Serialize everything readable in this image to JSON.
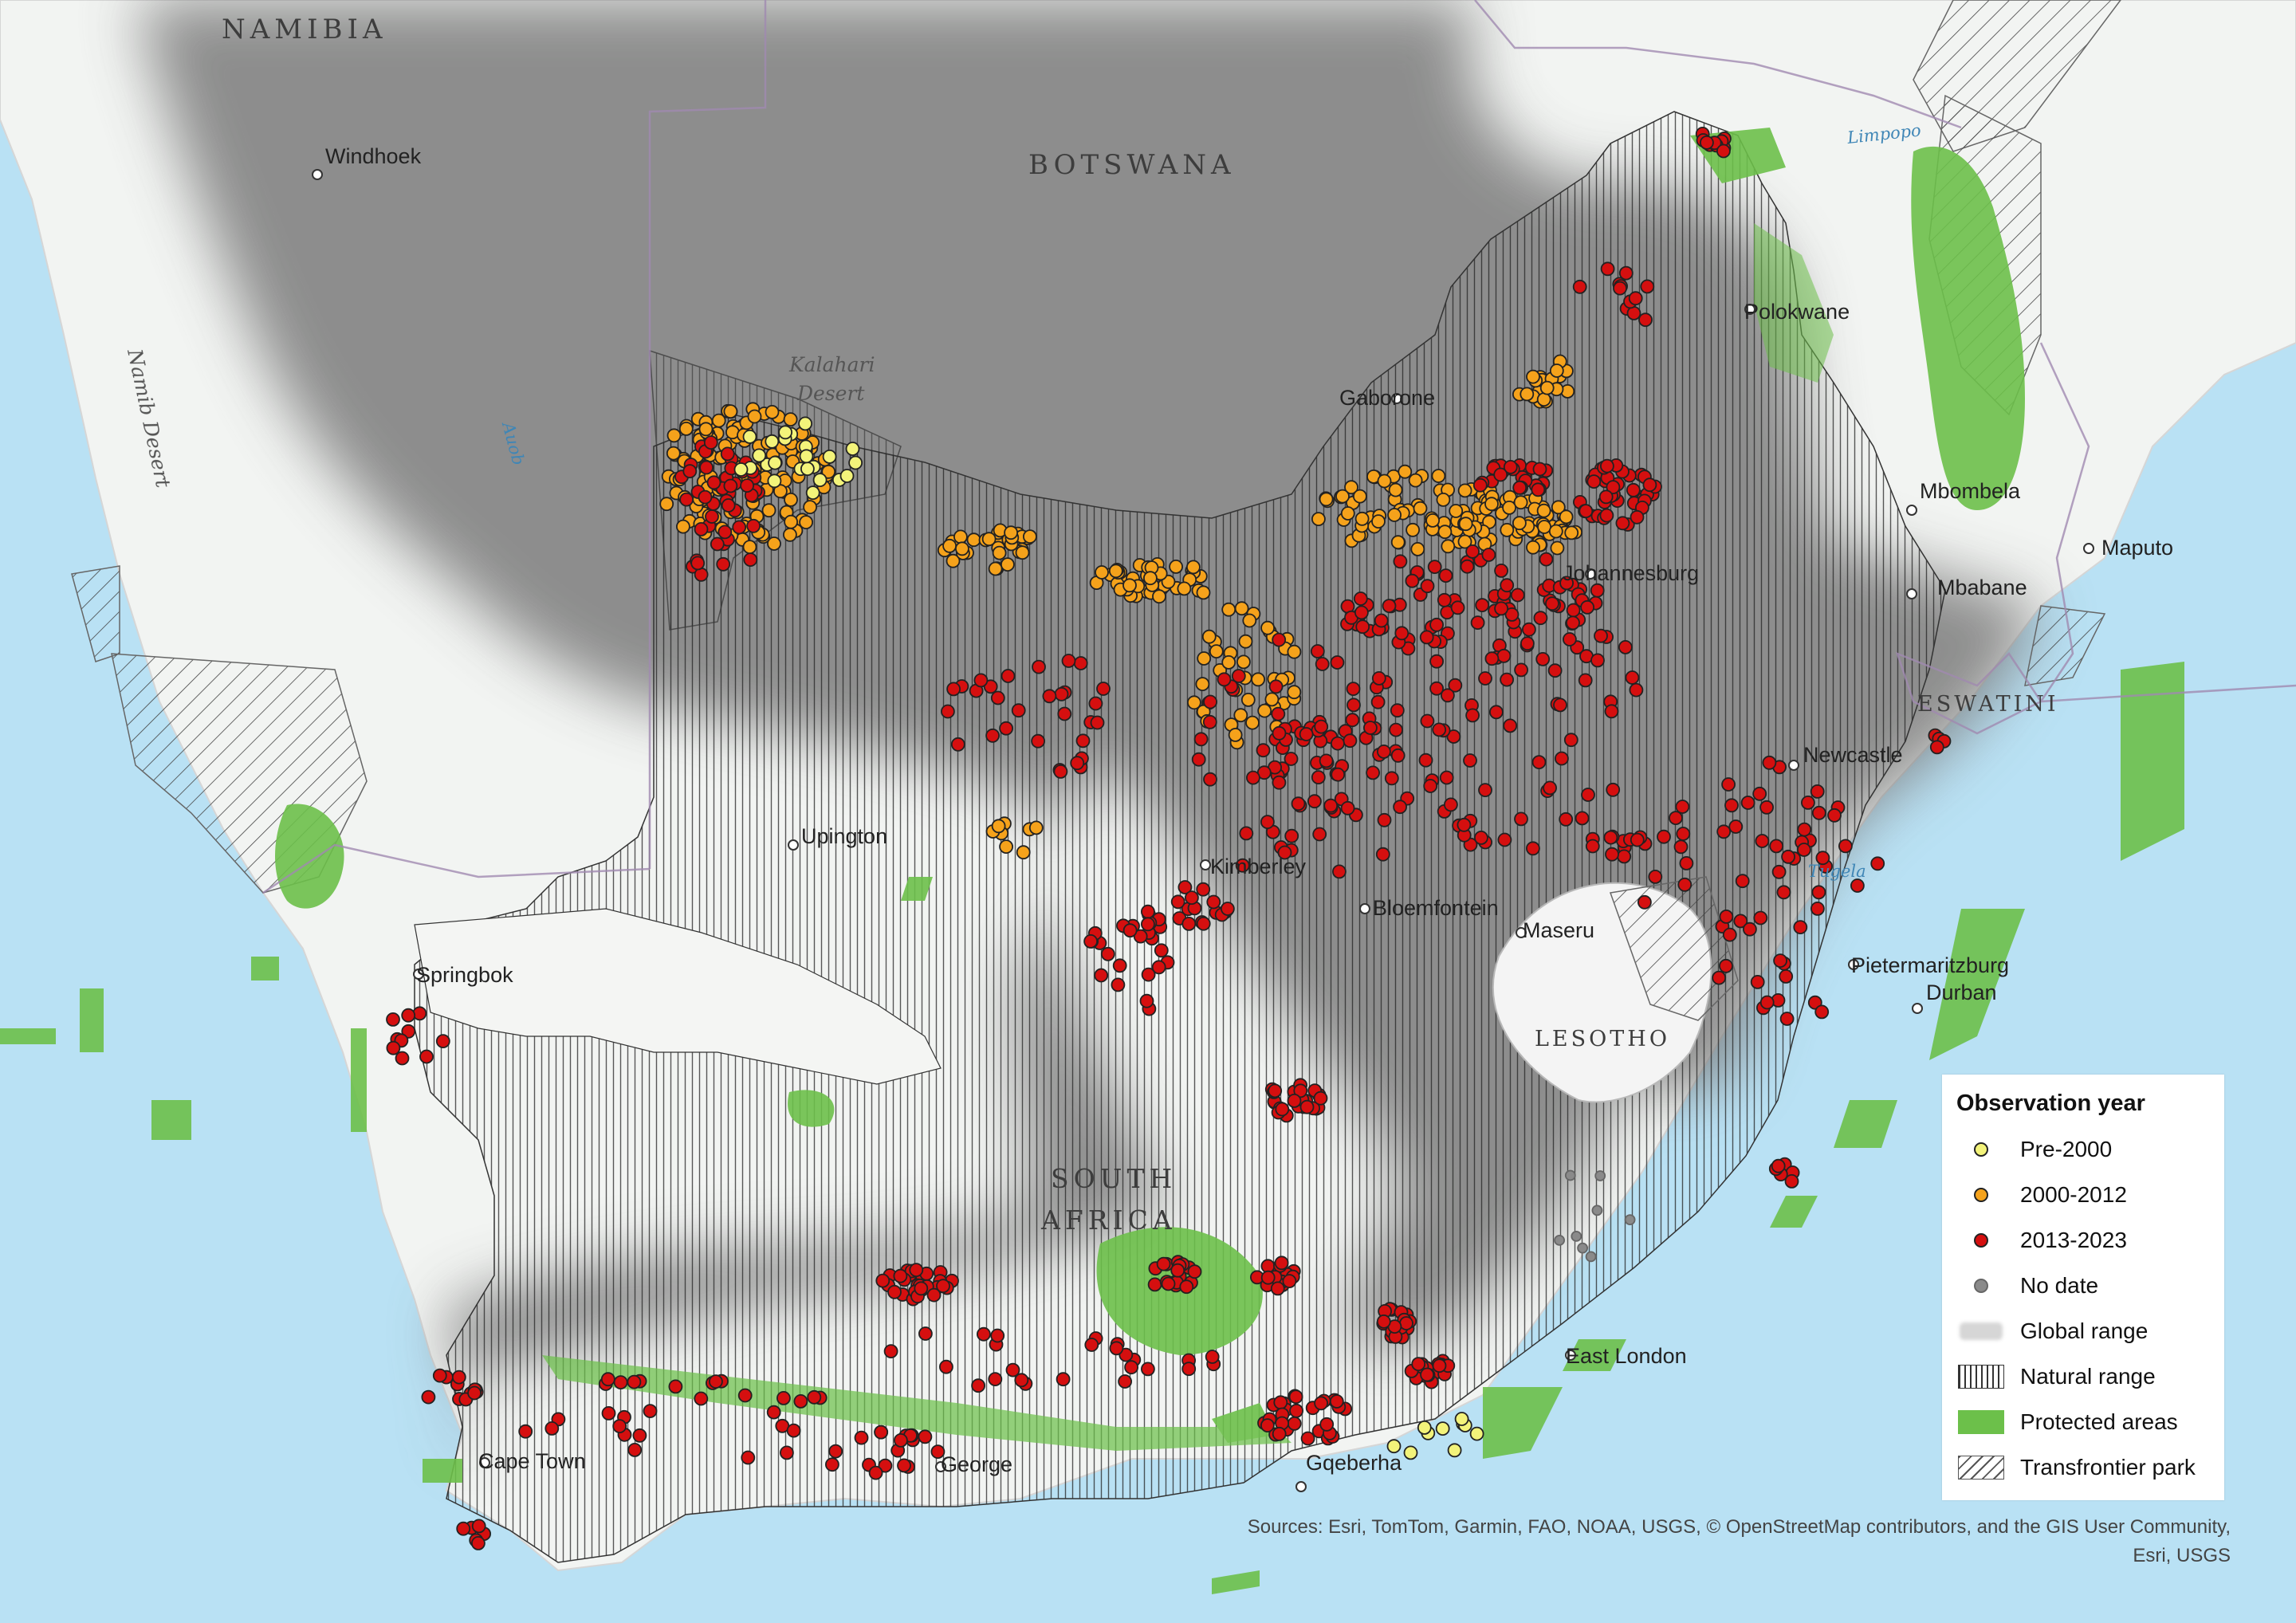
{
  "labels": {
    "countries": [
      "NAMIBIA",
      "BOTSWANA",
      "ESWATINI",
      "LESOTHO",
      "SOUTH",
      "AFRICA"
    ],
    "cities": [
      "Windhoek",
      "Gaborone",
      "Polokwane",
      "Mbombela",
      "Maputo",
      "Mbabane",
      "Johannesburg",
      "Newcastle",
      "Upington",
      "Kimberley",
      "Bloemfontein",
      "Maseru",
      "Pietermaritzburg",
      "Durban",
      "Springbok",
      "East London",
      "Cape Town",
      "George",
      "Gqeberha"
    ],
    "deserts": [
      "Kalahari",
      "Desert",
      "Namib Desert"
    ],
    "rivers": [
      "Limpopo",
      "Auob",
      "Tugela"
    ]
  },
  "legend": {
    "title": "Observation year",
    "items": [
      {
        "label": "Pre-2000",
        "color": "#f3f37a"
      },
      {
        "label": "2000-2012",
        "color": "#f5a21b"
      },
      {
        "label": "2013-2023",
        "color": "#d50f0f"
      },
      {
        "label": "No date",
        "color": "#8a8a8a"
      },
      {
        "label": "Global range",
        "color": "#cfcfcf"
      },
      {
        "label": "Natural range",
        "color": "#444444"
      },
      {
        "label": "Protected areas",
        "color": "#6cc04a"
      },
      {
        "label": "Transfrontier park",
        "color": "#555555"
      }
    ]
  },
  "sources": {
    "line1": "Sources: Esri, TomTom, Garmin, FAO, NOAA, USGS, © OpenStreetMap contributors, and the GIS User Community,",
    "line2": "Esri, USGS"
  },
  "colors": {
    "ocean": "#b9e1f4",
    "land": "#f2f4f2",
    "global_range": "#7d7d7d",
    "protected": "#6cc04a",
    "obs_pre2000": "#f3f37a",
    "obs_2000_2012": "#f5a21b",
    "obs_2013_2023": "#d50f0f",
    "obs_nodate": "#8a8a8a"
  }
}
